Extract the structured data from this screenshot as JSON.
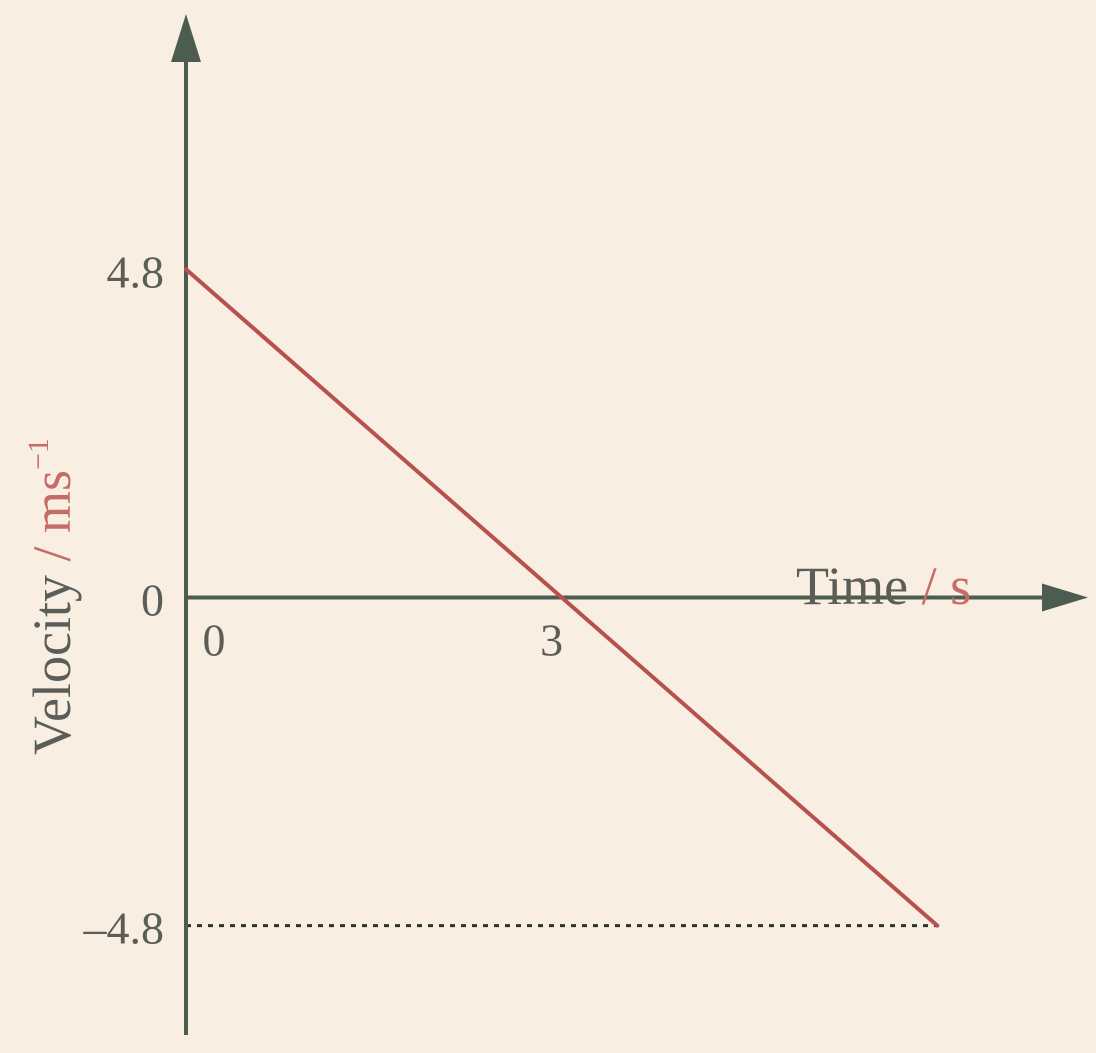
{
  "chart_data": {
    "type": "line",
    "title": "",
    "xlabel": {
      "text": "Time",
      "separator": " / ",
      "unit": "s"
    },
    "ylabel": {
      "text": "Velocity",
      "separator": " / ",
      "unit": "ms",
      "unit_superscript": "−1"
    },
    "x_ticks": [
      {
        "value": 0,
        "label": "0"
      },
      {
        "value": 3,
        "label": "3"
      }
    ],
    "y_ticks": [
      {
        "value": 4.8,
        "label": "4.8"
      },
      {
        "value": 0,
        "label": "0"
      },
      {
        "value": -4.8,
        "label": "–4.8"
      }
    ],
    "xlim": [
      0,
      6.9
    ],
    "ylim": [
      -6.4,
      8.3
    ],
    "series": [
      {
        "x": [
          0,
          6
        ],
        "y": [
          4.8,
          -4.8
        ]
      }
    ],
    "reference_lines": [
      {
        "type": "horizontal-dotted",
        "y": -4.8,
        "x_from": 0,
        "x_to": 6
      }
    ],
    "grid": false,
    "colors": {
      "background": "#f8efe2",
      "axis": "#4d5c50",
      "series": "#b8504f",
      "label_text": "#5b5e58",
      "unit_text": "#c66b66"
    }
  }
}
